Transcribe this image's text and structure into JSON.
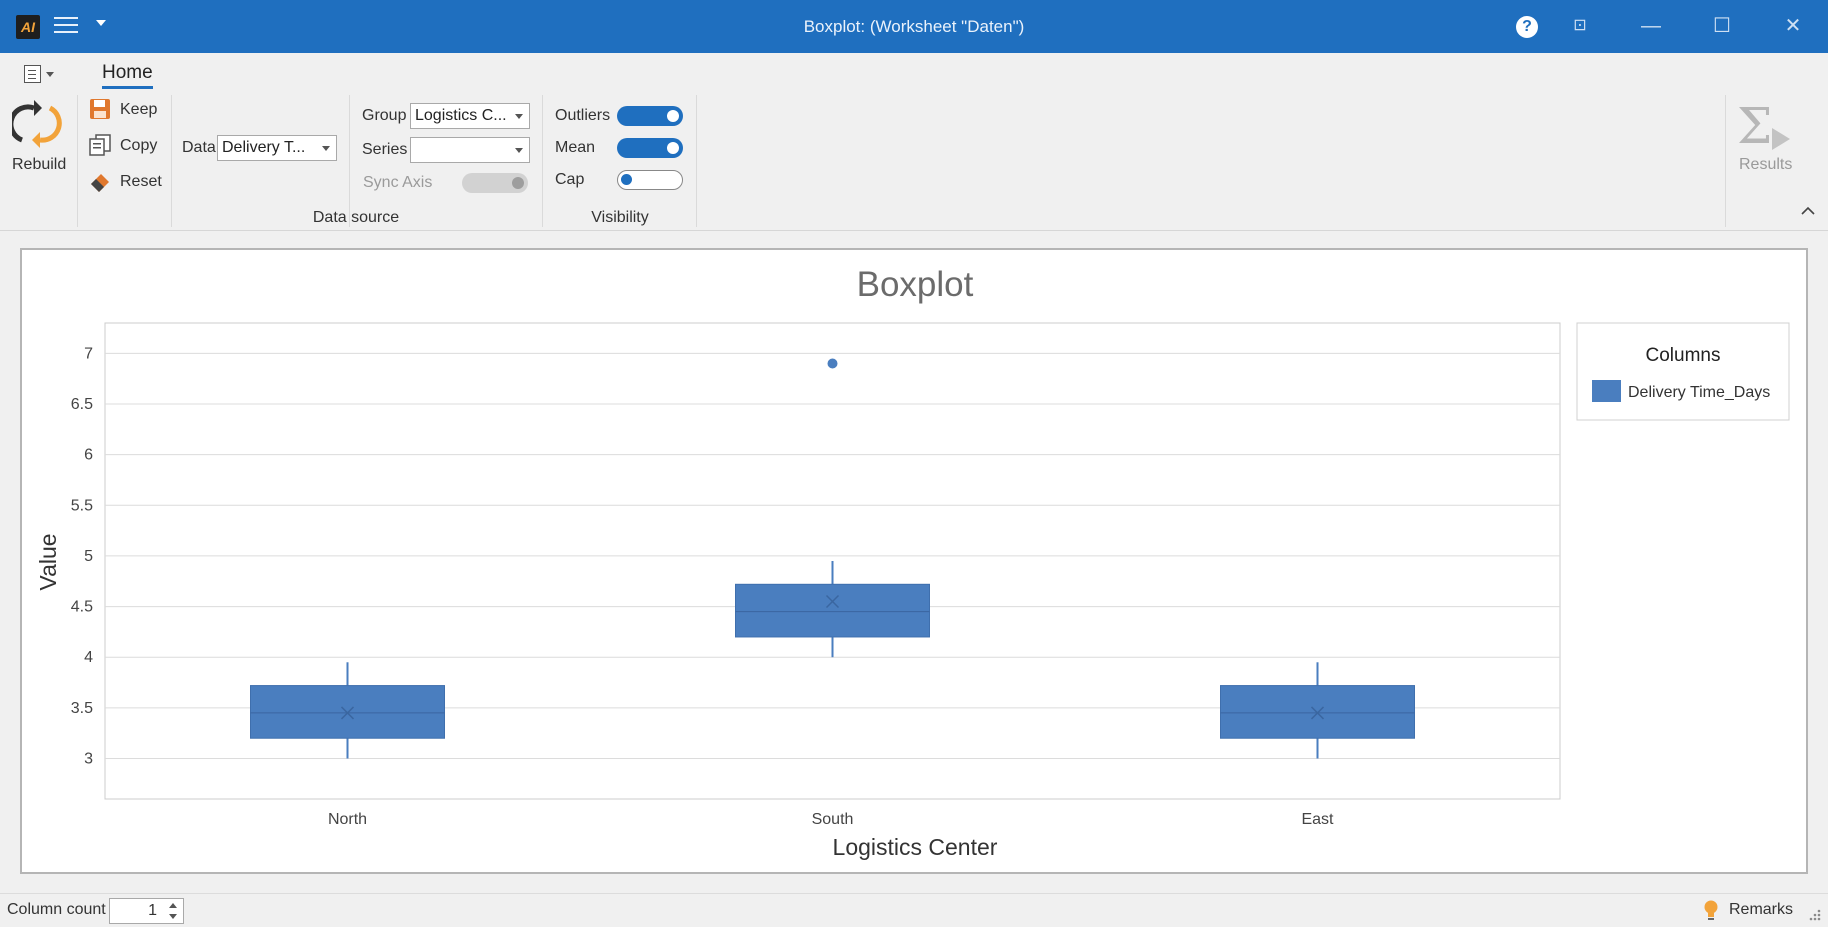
{
  "window": {
    "title": "Boxplot:  (Worksheet \"Daten\")",
    "logo_text": "AI",
    "help_label": "?",
    "minimize_label": "—",
    "maximize_label": "☐",
    "close_label": "✕",
    "pin_label": "⊡"
  },
  "ribbon": {
    "tab_home": "Home",
    "rebuild_label": "Rebuild",
    "keep_label": "Keep",
    "copy_label": "Copy",
    "reset_label": "Reset",
    "data_label": "Data",
    "data_value": "Delivery T...",
    "group_label": "Group",
    "group_value": "Logistics C...",
    "series_label": "Series",
    "series_value": "",
    "sync_axis_label": "Sync Axis",
    "data_source_caption": "Data source",
    "outliers_label": "Outliers",
    "mean_label": "Mean",
    "cap_label": "Cap",
    "visibility_caption": "Visibility",
    "results_label": "Results",
    "toggles": {
      "outliers": true,
      "mean": true,
      "cap": false,
      "sync_axis": "disabled"
    }
  },
  "chart_data": {
    "type": "boxplot",
    "title": "Boxplot",
    "xlabel": "Logistics Center",
    "ylabel": "Value",
    "ylim": [
      2.6,
      7.3
    ],
    "yticks": [
      "3",
      "3.5",
      "4",
      "4.5",
      "5",
      "5.5",
      "6",
      "6.5",
      "7"
    ],
    "categories": [
      "North",
      "South",
      "East"
    ],
    "series": [
      {
        "name": "Delivery Time_Days",
        "color": "#4a7ebf",
        "boxes": [
          {
            "category": "North",
            "min": 3.0,
            "q1": 3.2,
            "median": 3.45,
            "q3": 3.72,
            "max": 3.95,
            "mean": 3.45,
            "outliers": []
          },
          {
            "category": "South",
            "min": 4.0,
            "q1": 4.2,
            "median": 4.45,
            "q3": 4.72,
            "max": 4.95,
            "mean": 4.55,
            "outliers": [
              6.9
            ]
          },
          {
            "category": "East",
            "min": 3.0,
            "q1": 3.2,
            "median": 3.45,
            "q3": 3.72,
            "max": 3.95,
            "mean": 3.45,
            "outliers": []
          }
        ]
      }
    ],
    "legend": {
      "title": "Columns",
      "placement": "right"
    },
    "grid": true
  },
  "status": {
    "column_count_label": "Column count",
    "column_count_value": "1",
    "remarks_label": "Remarks"
  }
}
